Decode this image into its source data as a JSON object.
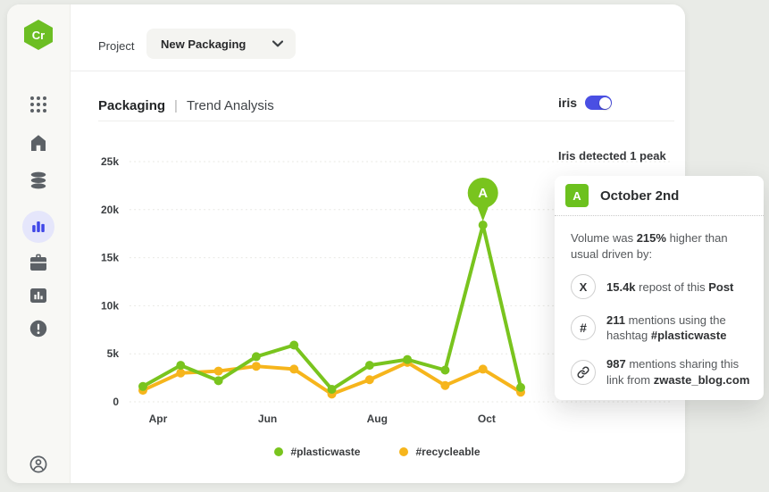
{
  "logo": {
    "text": "Cr",
    "color": "#6cbe23"
  },
  "sidebar": {
    "items": [
      {
        "icon": "apps-grid-icon",
        "active": false
      },
      {
        "icon": "home-icon",
        "active": false
      },
      {
        "icon": "database-icon",
        "active": false
      },
      {
        "icon": "analytics-icon",
        "active": true
      },
      {
        "icon": "briefcase-icon",
        "active": false
      },
      {
        "icon": "report-icon",
        "active": false
      },
      {
        "icon": "alert-icon",
        "active": false
      }
    ],
    "footer_icon": "account-icon",
    "active_color": "#4047e8",
    "icon_color": "#5c6166"
  },
  "project_bar": {
    "label": "Project",
    "dropdown_value": "New Packaging"
  },
  "header": {
    "title": "Packaging",
    "separator": "|",
    "subtitle": "Trend Analysis",
    "iris_label": "iris",
    "iris_toggle_on": true,
    "toggle_color": "#4a4fe3"
  },
  "insight_banner": "Iris detected 1 peak",
  "peak_panel": {
    "marker_label": "A",
    "marker_color": "#6cc11e",
    "title": "October 2nd",
    "intro": [
      {
        "t": "Volume was ",
        "b": 0
      },
      {
        "t": "215%",
        "b": 1
      },
      {
        "t": " higher than usual driven by:",
        "b": 0
      }
    ],
    "items": [
      {
        "icon": "x-social-icon",
        "text": [
          {
            "t": "15.4k",
            "b": 1
          },
          {
            "t": " repost of this ",
            "b": 0
          },
          {
            "t": "Post",
            "b": 1
          }
        ]
      },
      {
        "icon": "hashtag-icon",
        "text": [
          {
            "t": "211",
            "b": 1
          },
          {
            "t": " mentions using the hashtag ",
            "b": 0
          },
          {
            "t": "#plasticwaste",
            "b": 1
          }
        ]
      },
      {
        "icon": "link-icon",
        "text": [
          {
            "t": "987",
            "b": 1
          },
          {
            "t": " mentions sharing this link from ",
            "b": 0
          },
          {
            "t": "zwaste_blog.com",
            "b": 1
          }
        ]
      }
    ]
  },
  "chart_data": {
    "type": "line",
    "title": "",
    "x_tick_labels": [
      "Apr",
      "Jun",
      "Aug",
      "Oct"
    ],
    "x_tick_positions": [
      0.4,
      3.3,
      6.2,
      9.1
    ],
    "y_tick_labels": [
      "0",
      "5k",
      "10k",
      "15k",
      "20k",
      "25k"
    ],
    "ylim": [
      0,
      25000
    ],
    "grid": "horizontal-dotted",
    "legend_position": "bottom",
    "series": [
      {
        "name": "#plasticwaste",
        "color": "#79c41e",
        "values": [
          1600,
          3800,
          2200,
          4700,
          5900,
          1300,
          3800,
          4400,
          3300,
          18400,
          1500
        ]
      },
      {
        "name": "#recycleable",
        "color": "#f6b51c",
        "values": [
          1200,
          3000,
          3200,
          3700,
          3400,
          800,
          2300,
          4100,
          1700,
          3400,
          1000
        ]
      }
    ],
    "annotation": {
      "label": "A",
      "series": "#plasticwaste",
      "point_index": 9,
      "value": 18400
    }
  }
}
